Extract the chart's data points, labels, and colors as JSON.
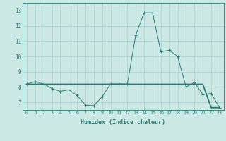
{
  "x": [
    0,
    1,
    2,
    3,
    4,
    5,
    6,
    7,
    8,
    9,
    10,
    11,
    12,
    13,
    14,
    15,
    16,
    17,
    18,
    19,
    20,
    21,
    22,
    23
  ],
  "line1_markers": [
    8.2,
    8.35,
    8.2,
    7.9,
    7.72,
    7.82,
    7.45,
    6.82,
    6.78,
    7.38,
    8.2,
    8.2,
    8.2,
    11.4,
    12.85,
    12.85,
    10.3,
    10.4,
    10.0,
    8.0,
    8.3,
    7.52,
    7.58,
    6.65
  ],
  "line2_flat": [
    8.18,
    8.18,
    8.18,
    8.18,
    8.18,
    8.18,
    8.18,
    8.18,
    8.18,
    8.18,
    8.18,
    8.18,
    8.18,
    8.18,
    8.18,
    8.18,
    8.18,
    8.18,
    8.18,
    8.18,
    8.18,
    8.18,
    6.65,
    6.65
  ],
  "line_color": "#2a7a72",
  "bg_color": "#cce8e4",
  "grid_color": "#aacfcc",
  "xlabel": "Humidex (Indice chaleur)",
  "ylim": [
    6.5,
    13.5
  ],
  "xlim": [
    -0.5,
    23.5
  ],
  "yticks": [
    7,
    8,
    9,
    10,
    11,
    12,
    13
  ],
  "xticks": [
    0,
    1,
    2,
    3,
    4,
    5,
    6,
    7,
    8,
    9,
    10,
    11,
    12,
    13,
    14,
    15,
    16,
    17,
    18,
    19,
    20,
    21,
    22,
    23
  ]
}
